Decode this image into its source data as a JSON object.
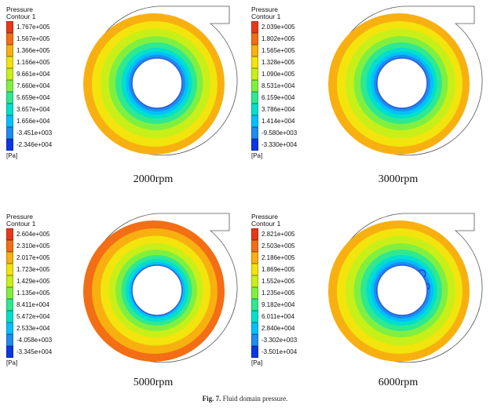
{
  "colormap": [
    "#0a37e6",
    "#1e8cf0",
    "#00c0ff",
    "#00e0cc",
    "#30e890",
    "#80f040",
    "#c8f018",
    "#f2e40c",
    "#f8b010",
    "#f36e14",
    "#e83818"
  ],
  "legend_title": "Pressure",
  "legend_subtitle": "Contour 1",
  "unit": "[Pa]",
  "panels": [
    {
      "rpm_label": "2000rpm",
      "levels": [
        "1.767e+005",
        "1.567e+005",
        "1.366e+005",
        "1.166e+005",
        "9.661e+004",
        "7.660e+004",
        "5.659e+004",
        "3.657e+004",
        "1.656e+004",
        "-3.451e+003",
        "-2.346e+004"
      ],
      "field": [
        "#f8b010",
        "#f2e40c",
        "#c8f018",
        "#80f040",
        "#30e890",
        "#00e0cc",
        "#00c0ff",
        "#1e8cf0"
      ]
    },
    {
      "rpm_label": "3000rpm",
      "levels": [
        "2.039e+005",
        "1.802e+005",
        "1.565e+005",
        "1.328e+005",
        "1.090e+005",
        "8.531e+004",
        "6.159e+004",
        "3.786e+004",
        "1.414e+004",
        "-9.580e+003",
        "-3.330e+004"
      ],
      "field": [
        "#f8b010",
        "#f2e40c",
        "#c8f018",
        "#80f040",
        "#30e890",
        "#00e0cc",
        "#00c0ff",
        "#1e8cf0"
      ]
    },
    {
      "rpm_label": "5000rpm",
      "levels": [
        "2.604e+005",
        "2.310e+005",
        "2.017e+005",
        "1.723e+005",
        "1.429e+005",
        "1.135e+005",
        "8.411e+004",
        "5.472e+004",
        "2.533e+004",
        "-4.058e+003",
        "-3.345e+004"
      ],
      "field": [
        "#f36e14",
        "#f8b010",
        "#f2e40c",
        "#c8f018",
        "#80f040",
        "#30e890",
        "#00e0cc",
        "#00c0ff"
      ]
    },
    {
      "rpm_label": "6000rpm",
      "levels": [
        "2.821e+005",
        "2.503e+005",
        "2.186e+005",
        "1.869e+005",
        "1.552e+005",
        "1.235e+005",
        "9.182e+004",
        "6.011e+004",
        "2.840e+004",
        "-3.302e+003",
        "-3.501e+004"
      ],
      "field": [
        "#f8b010",
        "#f2e40c",
        "#c8f018",
        "#80f040",
        "#30e890",
        "#00e0cc",
        "#00c0ff",
        "#1e8cf0"
      ]
    }
  ],
  "caption_label": "Fig. 7.",
  "caption_text": "Fluid domain pressure."
}
